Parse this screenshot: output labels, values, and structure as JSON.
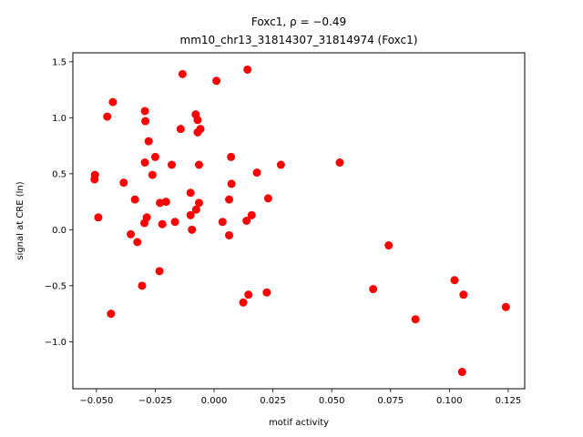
{
  "chart_data": {
    "type": "scatter",
    "title_line1": "Foxc1, ρ = −0.49",
    "title_line2": "mm10_chr13_31814307_31814974 (Foxc1)",
    "xlabel": "motif activity",
    "ylabel": "signal at CRE (ln)",
    "xlim": [
      -0.06,
      0.132
    ],
    "ylim": [
      -1.42,
      1.58
    ],
    "xticks": [
      -0.05,
      -0.025,
      0.0,
      0.025,
      0.05,
      0.075,
      0.1,
      0.125
    ],
    "xtick_labels": [
      "−0.050",
      "−0.025",
      "0.000",
      "0.025",
      "0.050",
      "0.075",
      "0.100",
      "0.125"
    ],
    "yticks": [
      -1.0,
      -0.5,
      0.0,
      0.5,
      1.0,
      1.5
    ],
    "ytick_labels": [
      "−1.0",
      "−0.5",
      "0.0",
      "0.5",
      "1.0",
      "1.5"
    ],
    "grid": false,
    "marker_color": "#ff0000",
    "points": [
      {
        "x": 0.0142,
        "y": 1.43
      },
      {
        "x": -0.0134,
        "y": 1.39
      },
      {
        "x": 0.001,
        "y": 1.33
      },
      {
        "x": -0.043,
        "y": 1.14
      },
      {
        "x": -0.0294,
        "y": 1.06
      },
      {
        "x": -0.0454,
        "y": 1.01
      },
      {
        "x": -0.0078,
        "y": 1.03
      },
      {
        "x": -0.0292,
        "y": 0.97
      },
      {
        "x": -0.007,
        "y": 0.98
      },
      {
        "x": -0.0142,
        "y": 0.9
      },
      {
        "x": -0.0058,
        "y": 0.9
      },
      {
        "x": -0.007,
        "y": 0.87
      },
      {
        "x": -0.0278,
        "y": 0.79
      },
      {
        "x": -0.025,
        "y": 0.65
      },
      {
        "x": 0.0072,
        "y": 0.65
      },
      {
        "x": 0.0534,
        "y": 0.6
      },
      {
        "x": -0.0294,
        "y": 0.6
      },
      {
        "x": -0.018,
        "y": 0.58
      },
      {
        "x": -0.0064,
        "y": 0.58
      },
      {
        "x": 0.0284,
        "y": 0.58
      },
      {
        "x": -0.0506,
        "y": 0.49
      },
      {
        "x": -0.0262,
        "y": 0.49
      },
      {
        "x": 0.0182,
        "y": 0.51
      },
      {
        "x": -0.0508,
        "y": 0.45
      },
      {
        "x": -0.0384,
        "y": 0.42
      },
      {
        "x": 0.0074,
        "y": 0.41
      },
      {
        "x": -0.01,
        "y": 0.33
      },
      {
        "x": -0.0336,
        "y": 0.27
      },
      {
        "x": 0.0064,
        "y": 0.27
      },
      {
        "x": 0.023,
        "y": 0.28
      },
      {
        "x": -0.0204,
        "y": 0.25
      },
      {
        "x": -0.023,
        "y": 0.24
      },
      {
        "x": -0.0064,
        "y": 0.24
      },
      {
        "x": -0.0076,
        "y": 0.18
      },
      {
        "x": -0.01,
        "y": 0.13
      },
      {
        "x": 0.016,
        "y": 0.13
      },
      {
        "x": -0.0492,
        "y": 0.11
      },
      {
        "x": -0.0286,
        "y": 0.11
      },
      {
        "x": -0.0296,
        "y": 0.06
      },
      {
        "x": -0.022,
        "y": 0.05
      },
      {
        "x": -0.0166,
        "y": 0.07
      },
      {
        "x": 0.0036,
        "y": 0.07
      },
      {
        "x": 0.0138,
        "y": 0.08
      },
      {
        "x": -0.0094,
        "y": 0.0
      },
      {
        "x": -0.0354,
        "y": -0.04
      },
      {
        "x": 0.0064,
        "y": -0.05
      },
      {
        "x": -0.0326,
        "y": -0.11
      },
      {
        "x": 0.0742,
        "y": -0.14
      },
      {
        "x": -0.0232,
        "y": -0.37
      },
      {
        "x": 0.1022,
        "y": -0.45
      },
      {
        "x": -0.0306,
        "y": -0.5
      },
      {
        "x": 0.0676,
        "y": -0.53
      },
      {
        "x": 0.0224,
        "y": -0.56
      },
      {
        "x": 0.0146,
        "y": -0.58
      },
      {
        "x": 0.106,
        "y": -0.58
      },
      {
        "x": 0.0124,
        "y": -0.65
      },
      {
        "x": 0.124,
        "y": -0.69
      },
      {
        "x": -0.0438,
        "y": -0.75
      },
      {
        "x": 0.0856,
        "y": -0.8
      },
      {
        "x": 0.1054,
        "y": -1.27
      }
    ]
  }
}
